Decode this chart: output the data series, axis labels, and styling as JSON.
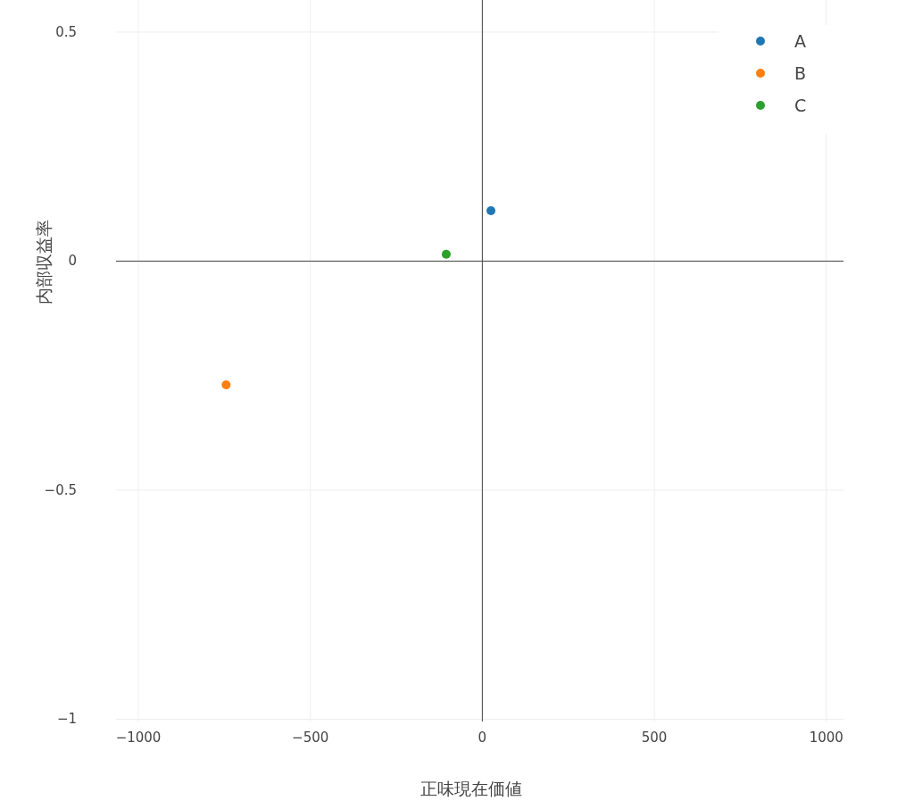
{
  "chart_data": {
    "type": "scatter",
    "xlabel": "正味現在価値",
    "ylabel": "内部収益率",
    "xlim": [
      -1065,
      1050
    ],
    "ylim": [
      -1.005,
      0.57
    ],
    "xticks": [
      {
        "value": -1000,
        "label": "−1000"
      },
      {
        "value": -500,
        "label": "−500"
      },
      0,
      500,
      1000
    ],
    "yticks": [
      {
        "value": -1,
        "label": "−1"
      },
      {
        "value": -0.5,
        "label": "−0.5"
      },
      0,
      0.5
    ],
    "grid": true,
    "legend": "top right",
    "marker": "circle",
    "series": [
      {
        "name": "A",
        "color": "#1f77b4",
        "x": [
          25
        ],
        "values": [
          0.11
        ]
      },
      {
        "name": "B",
        "color": "#ff7f0e",
        "x": [
          -745
        ],
        "values": [
          -0.27
        ]
      },
      {
        "name": "C",
        "color": "#2ca02c",
        "x": [
          -105
        ],
        "values": [
          0.015
        ]
      }
    ]
  }
}
